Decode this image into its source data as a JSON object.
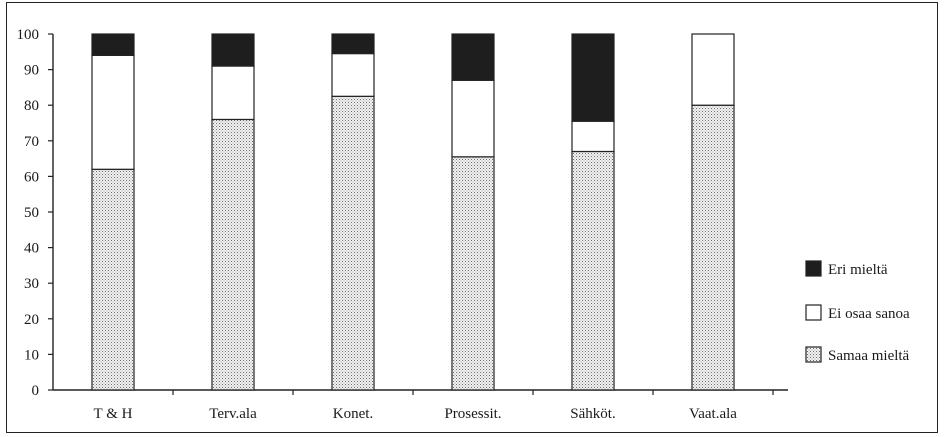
{
  "chart_data": {
    "type": "bar",
    "stacked": true,
    "categories": [
      "T & H",
      "Terv.ala",
      "Konet.",
      "Prosessit.",
      "Sähköt.",
      "Vaat.ala"
    ],
    "series": [
      {
        "name": "Samaa mieltä",
        "values": [
          62,
          76,
          82.5,
          65.5,
          67,
          80
        ],
        "color": "#dcdcdc",
        "pattern": "dotted"
      },
      {
        "name": "Ei osaa sanoa",
        "values": [
          32,
          15,
          12,
          21.5,
          8.5,
          20
        ],
        "color": "#ffffff",
        "pattern": "none"
      },
      {
        "name": "Eri mieltä",
        "values": [
          6,
          9,
          5.5,
          13,
          24.5,
          0
        ],
        "color": "#1e1e1e",
        "pattern": "none"
      }
    ],
    "yticks": [
      "0",
      "10",
      "20",
      "30",
      "40",
      "50",
      "60",
      "70",
      "80",
      "90",
      "100"
    ],
    "ylim": [
      0,
      100
    ],
    "title": "",
    "xlabel": "",
    "ylabel": "",
    "grid": false,
    "legend_position": "right",
    "legend_order": [
      "Eri mieltä",
      "Ei osaa sanoa",
      "Samaa mieltä"
    ]
  }
}
